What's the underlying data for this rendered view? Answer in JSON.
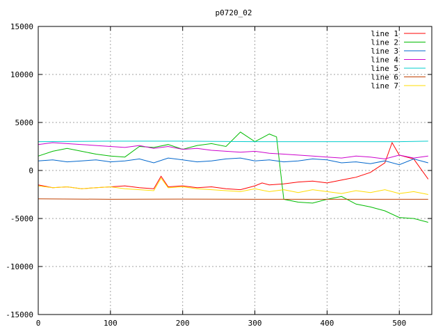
{
  "chart_data": {
    "type": "line",
    "title": "p0720_02",
    "xlabel": "",
    "ylabel": "",
    "xlim": [
      0,
      545
    ],
    "ylim": [
      -15000,
      15000
    ],
    "xticks": [
      0,
      100,
      200,
      300,
      400,
      500
    ],
    "yticks": [
      -15000,
      -10000,
      -5000,
      0,
      5000,
      10000,
      15000
    ],
    "grid": true,
    "legend_position": "top-right",
    "series": [
      {
        "name": "line 1",
        "color": "#ff0000",
        "x": [
          0,
          20,
          40,
          60,
          80,
          100,
          120,
          140,
          160,
          170,
          180,
          200,
          220,
          240,
          260,
          280,
          300,
          310,
          320,
          340,
          360,
          380,
          400,
          420,
          440,
          460,
          480,
          490,
          500,
          520,
          540
        ],
        "y": [
          -1500,
          -1800,
          -1700,
          -1900,
          -1800,
          -1700,
          -1600,
          -1800,
          -1900,
          -600,
          -1700,
          -1600,
          -1800,
          -1700,
          -1900,
          -2000,
          -1600,
          -1300,
          -1500,
          -1400,
          -1200,
          -1100,
          -1300,
          -1000,
          -700,
          -200,
          800,
          2900,
          1600,
          1200,
          -900
        ]
      },
      {
        "name": "line 2",
        "color": "#00bb00",
        "x": [
          0,
          20,
          40,
          60,
          80,
          100,
          120,
          140,
          160,
          180,
          200,
          220,
          240,
          260,
          280,
          300,
          320,
          330,
          340,
          360,
          380,
          400,
          420,
          440,
          460,
          480,
          500,
          520,
          540
        ],
        "y": [
          1500,
          2000,
          2300,
          2000,
          1700,
          1500,
          1400,
          2500,
          2400,
          2700,
          2200,
          2600,
          2800,
          2500,
          4000,
          3000,
          3800,
          3500,
          -3000,
          -3300,
          -3400,
          -3000,
          -2700,
          -3500,
          -3800,
          -4200,
          -4900,
          -5000,
          -5400
        ]
      },
      {
        "name": "line 3",
        "color": "#0066cc",
        "x": [
          0,
          20,
          40,
          60,
          80,
          100,
          120,
          140,
          160,
          180,
          200,
          220,
          240,
          260,
          280,
          300,
          320,
          340,
          360,
          380,
          400,
          420,
          440,
          460,
          480,
          500,
          520,
          540
        ],
        "y": [
          1000,
          1100,
          900,
          1000,
          1100,
          900,
          1000,
          1200,
          800,
          1300,
          1100,
          900,
          1000,
          1200,
          1300,
          1000,
          1100,
          900,
          1000,
          1200,
          1100,
          800,
          900,
          700,
          1000,
          600,
          1200,
          800
        ]
      },
      {
        "name": "line 4",
        "color": "#cc00cc",
        "x": [
          0,
          20,
          40,
          60,
          80,
          100,
          120,
          140,
          160,
          180,
          200,
          220,
          240,
          260,
          280,
          300,
          320,
          340,
          360,
          380,
          400,
          420,
          440,
          460,
          480,
          500,
          520,
          540
        ],
        "y": [
          2700,
          2900,
          2800,
          2700,
          2600,
          2500,
          2400,
          2600,
          2300,
          2500,
          2200,
          2300,
          2100,
          2000,
          1900,
          2000,
          1800,
          1700,
          1600,
          1500,
          1400,
          1300,
          1500,
          1400,
          1200,
          1600,
          1300,
          1500
        ]
      },
      {
        "name": "line 5",
        "color": "#00cccc",
        "x": [
          0,
          100,
          200,
          300,
          400,
          500,
          540
        ],
        "y": [
          3000,
          3050,
          3050,
          3000,
          3000,
          3000,
          3050
        ]
      },
      {
        "name": "line 6",
        "color": "#c04000",
        "x": [
          0,
          100,
          200,
          300,
          400,
          500,
          540
        ],
        "y": [
          -2950,
          -3000,
          -2980,
          -3000,
          -3000,
          -3000,
          -3000
        ]
      },
      {
        "name": "line 7",
        "color": "#ffdd00",
        "x": [
          0,
          20,
          40,
          60,
          80,
          100,
          120,
          140,
          160,
          170,
          180,
          200,
          220,
          240,
          260,
          280,
          300,
          320,
          340,
          360,
          380,
          400,
          420,
          440,
          460,
          480,
          500,
          520,
          540
        ],
        "y": [
          -1600,
          -1800,
          -1700,
          -1900,
          -1800,
          -1700,
          -1900,
          -2000,
          -2100,
          -800,
          -1800,
          -1700,
          -1900,
          -2000,
          -2100,
          -2200,
          -1900,
          -2200,
          -2000,
          -2300,
          -2000,
          -2200,
          -2400,
          -2100,
          -2300,
          -2000,
          -2400,
          -2200,
          -2500
        ]
      }
    ]
  }
}
